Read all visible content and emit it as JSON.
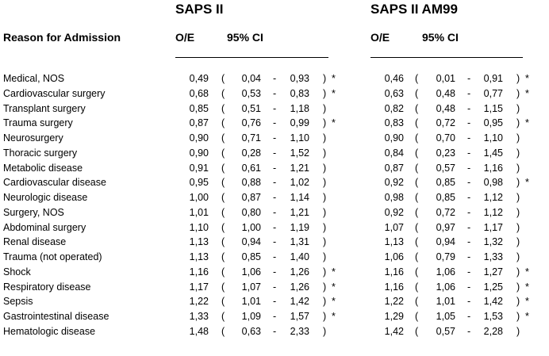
{
  "groups": [
    {
      "title": "SAPS II",
      "oe_label": "O/E",
      "ci_label": "95% CI"
    },
    {
      "title": "SAPS II AM99",
      "oe_label": "O/E",
      "ci_label": "95% CI"
    }
  ],
  "reason_header": "Reason for Admission",
  "rows": [
    {
      "reason": "Medical, NOS",
      "a": {
        "oe": "0,49",
        "lo": "0,04",
        "hi": "0,93",
        "sig": "*"
      },
      "b": {
        "oe": "0,46",
        "lo": "0,01",
        "hi": "0,91",
        "sig": "*"
      }
    },
    {
      "reason": "Cardiovascular surgery",
      "a": {
        "oe": "0,68",
        "lo": "0,53",
        "hi": "0,83",
        "sig": "*"
      },
      "b": {
        "oe": "0,63",
        "lo": "0,48",
        "hi": "0,77",
        "sig": "*"
      }
    },
    {
      "reason": "Transplant surgery",
      "a": {
        "oe": "0,85",
        "lo": "0,51",
        "hi": "1,18",
        "sig": ""
      },
      "b": {
        "oe": "0,82",
        "lo": "0,48",
        "hi": "1,15",
        "sig": ""
      }
    },
    {
      "reason": "Trauma surgery",
      "a": {
        "oe": "0,87",
        "lo": "0,76",
        "hi": "0,99",
        "sig": "*"
      },
      "b": {
        "oe": "0,83",
        "lo": "0,72",
        "hi": "0,95",
        "sig": "*"
      }
    },
    {
      "reason": "Neurosurgery",
      "a": {
        "oe": "0,90",
        "lo": "0,71",
        "hi": "1,10",
        "sig": ""
      },
      "b": {
        "oe": "0,90",
        "lo": "0,70",
        "hi": "1,10",
        "sig": ""
      }
    },
    {
      "reason": "Thoracic surgery",
      "a": {
        "oe": "0,90",
        "lo": "0,28",
        "hi": "1,52",
        "sig": ""
      },
      "b": {
        "oe": "0,84",
        "lo": "0,23",
        "hi": "1,45",
        "sig": ""
      }
    },
    {
      "reason": "Metabolic disease",
      "a": {
        "oe": "0,91",
        "lo": "0,61",
        "hi": "1,21",
        "sig": ""
      },
      "b": {
        "oe": "0,87",
        "lo": "0,57",
        "hi": "1,16",
        "sig": ""
      }
    },
    {
      "reason": "Cardiovascular disease",
      "a": {
        "oe": "0,95",
        "lo": "0,88",
        "hi": "1,02",
        "sig": ""
      },
      "b": {
        "oe": "0,92",
        "lo": "0,85",
        "hi": "0,98",
        "sig": "*"
      }
    },
    {
      "reason": "Neurologic disease",
      "a": {
        "oe": "1,00",
        "lo": "0,87",
        "hi": "1,14",
        "sig": ""
      },
      "b": {
        "oe": "0,98",
        "lo": "0,85",
        "hi": "1,12",
        "sig": ""
      }
    },
    {
      "reason": "Surgery, NOS",
      "a": {
        "oe": "1,01",
        "lo": "0,80",
        "hi": "1,21",
        "sig": ""
      },
      "b": {
        "oe": "0,92",
        "lo": "0,72",
        "hi": "1,12",
        "sig": ""
      }
    },
    {
      "reason": "Abdominal surgery",
      "a": {
        "oe": "1,10",
        "lo": "1,00",
        "hi": "1,19",
        "sig": ""
      },
      "b": {
        "oe": "1,07",
        "lo": "0,97",
        "hi": "1,17",
        "sig": ""
      }
    },
    {
      "reason": "Renal disease",
      "a": {
        "oe": "1,13",
        "lo": "0,94",
        "hi": "1,31",
        "sig": ""
      },
      "b": {
        "oe": "1,13",
        "lo": "0,94",
        "hi": "1,32",
        "sig": ""
      }
    },
    {
      "reason": "Trauma (not operated)",
      "a": {
        "oe": "1,13",
        "lo": "0,85",
        "hi": "1,40",
        "sig": ""
      },
      "b": {
        "oe": "1,06",
        "lo": "0,79",
        "hi": "1,33",
        "sig": ""
      }
    },
    {
      "reason": "Shock",
      "a": {
        "oe": "1,16",
        "lo": "1,06",
        "hi": "1,26",
        "sig": "*"
      },
      "b": {
        "oe": "1,16",
        "lo": "1,06",
        "hi": "1,27",
        "sig": "*"
      }
    },
    {
      "reason": "Respiratory disease",
      "a": {
        "oe": "1,17",
        "lo": "1,07",
        "hi": "1,26",
        "sig": "*"
      },
      "b": {
        "oe": "1,16",
        "lo": "1,06",
        "hi": "1,25",
        "sig": "*"
      }
    },
    {
      "reason": "Sepsis",
      "a": {
        "oe": "1,22",
        "lo": "1,01",
        "hi": "1,42",
        "sig": "*"
      },
      "b": {
        "oe": "1,22",
        "lo": "1,01",
        "hi": "1,42",
        "sig": "*"
      }
    },
    {
      "reason": "Gastrointestinal disease",
      "a": {
        "oe": "1,33",
        "lo": "1,09",
        "hi": "1,57",
        "sig": "*"
      },
      "b": {
        "oe": "1,29",
        "lo": "1,05",
        "hi": "1,53",
        "sig": "*"
      }
    },
    {
      "reason": "Hematologic disease",
      "a": {
        "oe": "1,48",
        "lo": "0,63",
        "hi": "2,33",
        "sig": ""
      },
      "b": {
        "oe": "1,42",
        "lo": "0,57",
        "hi": "2,28",
        "sig": ""
      }
    }
  ],
  "punctuation": {
    "open": "(",
    "dash": "-",
    "close": ")"
  }
}
